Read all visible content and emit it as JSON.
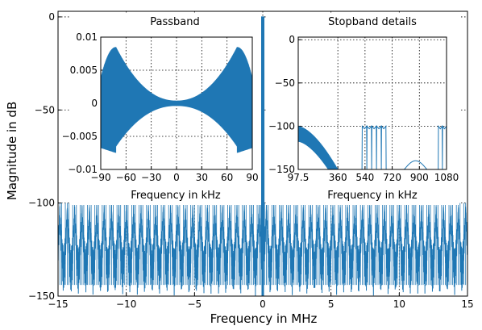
{
  "chart_data": [
    {
      "type": "line",
      "role": "main",
      "xlabel": "Frequency in MHz",
      "ylabel": "Magnitude in dB",
      "xlim": [
        -15,
        15
      ],
      "ylim": [
        -150,
        3
      ],
      "xticks": [
        -15,
        -10,
        -5,
        0,
        5,
        10,
        15
      ],
      "yticks": [
        0,
        -50,
        -100,
        -150
      ],
      "xtick_labels": [
        "−15",
        "−10",
        "−5",
        "0",
        "5",
        "10",
        "15"
      ],
      "ytick_labels": [
        "0",
        "−50",
        "−100",
        "−150"
      ],
      "grid": true,
      "passband_level_db": 0,
      "passband_half_width_mhz": 0.09,
      "stopband_level_db": -100,
      "stopband_lobes_per_mhz": 1.85,
      "color": "#1f77b4"
    },
    {
      "type": "line",
      "role": "inset",
      "title": "Passband",
      "xlabel": "Frequency in kHz",
      "xlim": [
        -90,
        90
      ],
      "ylim": [
        -0.01,
        0.01
      ],
      "xticks": [
        -90,
        -60,
        -30,
        0,
        30,
        60,
        90
      ],
      "yticks": [
        0.01,
        0.005,
        0,
        -0.005,
        -0.01
      ],
      "xtick_labels": [
        "−90",
        "−60",
        "−30",
        "0",
        "30",
        "60",
        "90"
      ],
      "ytick_labels": [
        "0.01",
        "0.005",
        "0",
        "−0.005",
        "−0.01"
      ],
      "grid": true,
      "ripple_peak_khz": 72,
      "ripple_max": 0.0085,
      "ripple_center": 0.0004,
      "ripple_edge_min": -0.0075,
      "color": "#1f77b4"
    },
    {
      "type": "line",
      "role": "inset",
      "title": "Stopband details",
      "xlabel": "Frequency in kHz",
      "xlim": [
        97.5,
        1080
      ],
      "ylim": [
        -150,
        3
      ],
      "xticks": [
        97.5,
        360,
        540,
        720,
        900,
        1080
      ],
      "yticks": [
        0,
        -50,
        -100,
        -150
      ],
      "xtick_labels": [
        "97.5",
        "360",
        "540",
        "720",
        "900",
        "1080"
      ],
      "ytick_labels": [
        "0",
        "−50",
        "−100",
        "−150"
      ],
      "grid": true,
      "segments": [
        {
          "kind": "decay",
          "x": [
            97.5,
            360
          ],
          "y_start": -100,
          "y_end": -150
        },
        {
          "kind": "lobes",
          "x": [
            520,
            680
          ],
          "y_top": -100
        },
        {
          "kind": "dome",
          "x": [
            800,
            950
          ],
          "y_top": -140
        },
        {
          "kind": "lobes",
          "x": [
            1025,
            1080
          ],
          "y_top": -100
        }
      ],
      "color": "#1f77b4"
    }
  ]
}
